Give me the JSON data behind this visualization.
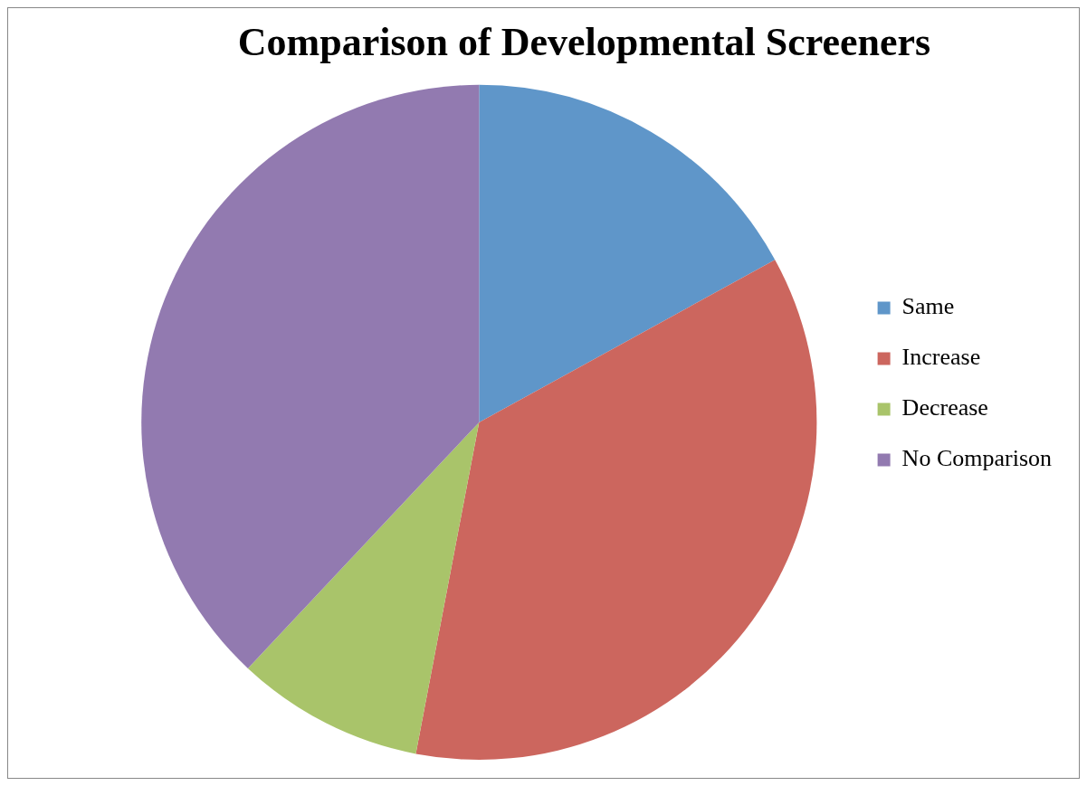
{
  "chart_data": {
    "type": "pie",
    "title": "Comparison of Developmental Screeners",
    "categories": [
      "Same",
      "Increase",
      "Decrease",
      "No Comparison"
    ],
    "values": [
      17,
      36,
      9,
      38
    ],
    "colors": [
      "#5f96c9",
      "#cc665e",
      "#a9c46a",
      "#927ab0"
    ],
    "legend": "right"
  }
}
